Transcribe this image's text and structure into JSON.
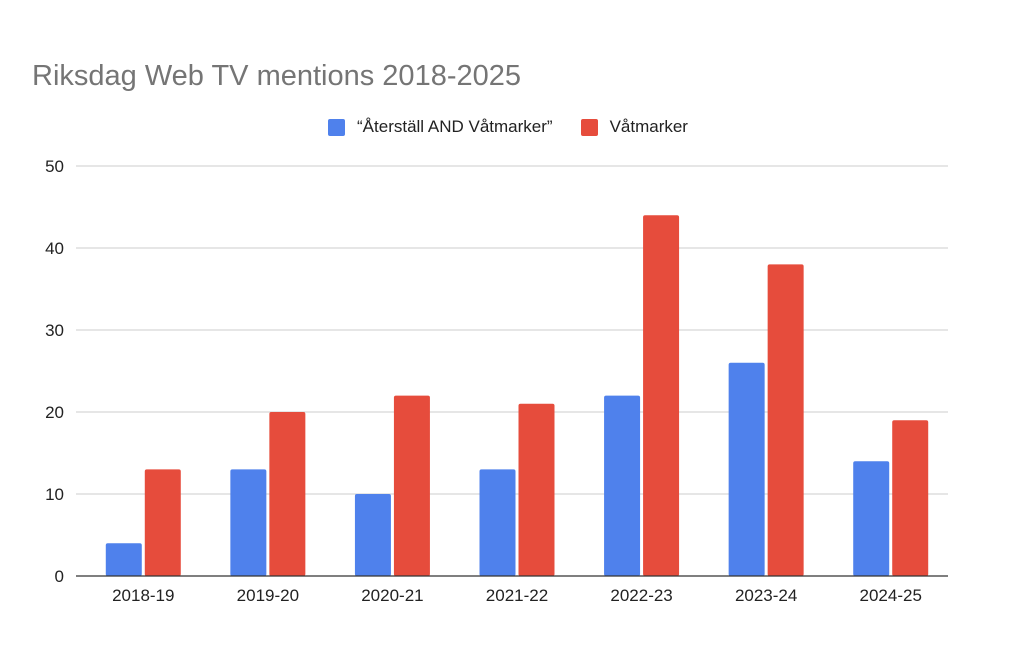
{
  "chart_data": {
    "type": "bar",
    "title": "Riksdag Web TV mentions 2018-2025",
    "xlabel": "",
    "ylabel": "",
    "categories": [
      "2018-19",
      "2019-20",
      "2020-21",
      "2021-22",
      "2022-23",
      "2023-24",
      "2024-25"
    ],
    "series": [
      {
        "name": "“Återställ AND Våtmarker”",
        "color": "#4f81ec",
        "values": [
          4,
          13,
          10,
          13,
          22,
          26,
          14
        ]
      },
      {
        "name": "Våtmarker",
        "color": "#e64c3c",
        "values": [
          13,
          20,
          22,
          21,
          44,
          38,
          19
        ]
      }
    ],
    "ylim": [
      0,
      50
    ],
    "yticks": [
      "0",
      "10",
      "20",
      "30",
      "40",
      "50"
    ],
    "grid": true,
    "legend_position": "top-center"
  }
}
